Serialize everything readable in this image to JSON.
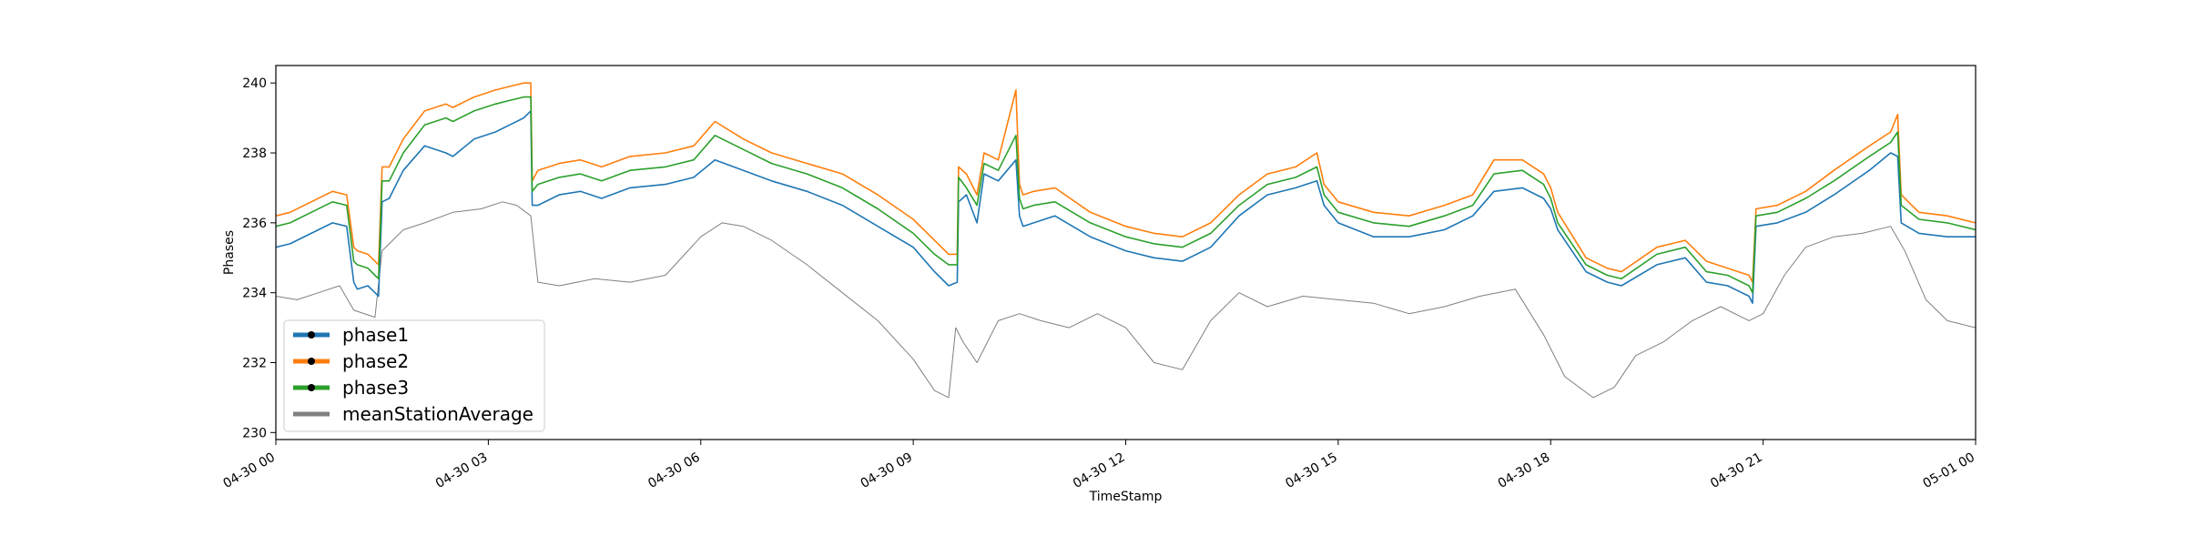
{
  "chart_data": {
    "type": "line",
    "title": "",
    "xlabel": "TimeStamp",
    "ylabel": "Phases",
    "x_range": [
      "04-30 00:00",
      "05-01 00:00"
    ],
    "ylim": [
      229.8,
      240.5
    ],
    "x_ticks": [
      {
        "hour": 0,
        "label": "04-30 00"
      },
      {
        "hour": 3,
        "label": "04-30 03"
      },
      {
        "hour": 6,
        "label": "04-30 06"
      },
      {
        "hour": 9,
        "label": "04-30 09"
      },
      {
        "hour": 12,
        "label": "04-30 12"
      },
      {
        "hour": 15,
        "label": "04-30 15"
      },
      {
        "hour": 18,
        "label": "04-30 18"
      },
      {
        "hour": 21,
        "label": "04-30 21"
      },
      {
        "hour": 24,
        "label": "05-01 00"
      }
    ],
    "y_ticks": [
      230,
      232,
      234,
      236,
      238,
      240
    ],
    "grid": false,
    "legend_position": "lower-left",
    "series": [
      {
        "name": "phase1",
        "color": "#1f77b4",
        "x": [
          0,
          0.2,
          0.5,
          0.8,
          1.0,
          1.1,
          1.15,
          1.3,
          1.4,
          1.45,
          1.5,
          1.6,
          1.8,
          2.1,
          2.4,
          2.5,
          2.8,
          3.1,
          3.3,
          3.5,
          3.6,
          3.62,
          3.7,
          4.0,
          4.3,
          4.6,
          5.0,
          5.5,
          5.9,
          6.2,
          6.6,
          7.0,
          7.5,
          8.0,
          8.5,
          9.0,
          9.3,
          9.5,
          9.62,
          9.64,
          9.75,
          9.9,
          10.0,
          10.2,
          10.45,
          10.5,
          10.55,
          10.7,
          11.0,
          11.5,
          12.0,
          12.4,
          12.8,
          13.2,
          13.6,
          14.0,
          14.4,
          14.7,
          14.8,
          15.0,
          15.5,
          16.0,
          16.5,
          16.9,
          17.2,
          17.6,
          17.9,
          18.0,
          18.1,
          18.5,
          18.8,
          19.0,
          19.5,
          19.9,
          20.2,
          20.5,
          20.8,
          20.85,
          20.9,
          21.2,
          21.6,
          22.0,
          22.5,
          22.8,
          22.9,
          22.95,
          23.2,
          23.6,
          24.0
        ],
        "y": [
          235.3,
          235.4,
          235.7,
          236.0,
          235.9,
          234.3,
          234.1,
          234.2,
          234.0,
          233.9,
          236.6,
          236.7,
          237.5,
          238.2,
          238.0,
          237.9,
          238.4,
          238.6,
          238.8,
          239.0,
          239.2,
          236.5,
          236.5,
          236.8,
          236.9,
          236.7,
          237.0,
          237.1,
          237.3,
          237.8,
          237.5,
          237.2,
          236.9,
          236.5,
          235.9,
          235.3,
          234.6,
          234.2,
          234.3,
          236.6,
          236.8,
          236.0,
          237.4,
          237.2,
          237.8,
          236.2,
          235.9,
          236.0,
          236.2,
          235.6,
          235.2,
          235.0,
          234.9,
          235.3,
          236.2,
          236.8,
          237.0,
          237.2,
          236.5,
          236.0,
          235.6,
          235.6,
          235.8,
          236.2,
          236.9,
          237.0,
          236.7,
          236.4,
          235.8,
          234.6,
          234.3,
          234.2,
          234.8,
          235.0,
          234.3,
          234.2,
          233.9,
          233.7,
          235.9,
          236.0,
          236.3,
          236.8,
          237.5,
          238.0,
          237.9,
          236.0,
          235.7,
          235.6,
          235.6
        ]
      },
      {
        "name": "phase2",
        "color": "#ff7f0e",
        "x": [
          0,
          0.2,
          0.5,
          0.8,
          1.0,
          1.1,
          1.15,
          1.3,
          1.4,
          1.45,
          1.5,
          1.6,
          1.8,
          2.1,
          2.4,
          2.5,
          2.8,
          3.1,
          3.3,
          3.5,
          3.6,
          3.62,
          3.7,
          4.0,
          4.3,
          4.6,
          5.0,
          5.5,
          5.9,
          6.2,
          6.6,
          7.0,
          7.5,
          8.0,
          8.5,
          9.0,
          9.3,
          9.5,
          9.62,
          9.64,
          9.75,
          9.9,
          10.0,
          10.2,
          10.45,
          10.5,
          10.55,
          10.7,
          11.0,
          11.5,
          12.0,
          12.4,
          12.8,
          13.2,
          13.6,
          14.0,
          14.4,
          14.7,
          14.8,
          15.0,
          15.5,
          16.0,
          16.5,
          16.9,
          17.2,
          17.6,
          17.9,
          18.0,
          18.1,
          18.5,
          18.8,
          19.0,
          19.5,
          19.9,
          20.2,
          20.5,
          20.8,
          20.85,
          20.9,
          21.2,
          21.6,
          22.0,
          22.5,
          22.8,
          22.9,
          22.95,
          23.2,
          23.6,
          24.0
        ],
        "y": [
          236.2,
          236.3,
          236.6,
          236.9,
          236.8,
          235.3,
          235.2,
          235.1,
          234.9,
          234.8,
          237.6,
          237.6,
          238.4,
          239.2,
          239.4,
          239.3,
          239.6,
          239.8,
          239.9,
          240.0,
          240.0,
          237.2,
          237.5,
          237.7,
          237.8,
          237.6,
          237.9,
          238.0,
          238.2,
          238.9,
          238.4,
          238.0,
          237.7,
          237.4,
          236.8,
          236.1,
          235.5,
          235.1,
          235.1,
          237.6,
          237.4,
          236.8,
          238.0,
          237.8,
          239.8,
          237.1,
          236.8,
          236.9,
          237.0,
          236.3,
          235.9,
          235.7,
          235.6,
          236.0,
          236.8,
          237.4,
          237.6,
          238.0,
          237.1,
          236.6,
          236.3,
          236.2,
          236.5,
          236.8,
          237.8,
          237.8,
          237.4,
          237.0,
          236.3,
          235.0,
          234.7,
          234.6,
          235.3,
          235.5,
          234.9,
          234.7,
          234.5,
          234.3,
          236.4,
          236.5,
          236.9,
          237.5,
          238.2,
          238.6,
          239.1,
          236.8,
          236.3,
          236.2,
          236.0
        ]
      },
      {
        "name": "phase3",
        "color": "#2ca02c",
        "x": [
          0,
          0.2,
          0.5,
          0.8,
          1.0,
          1.1,
          1.15,
          1.3,
          1.4,
          1.45,
          1.5,
          1.6,
          1.8,
          2.1,
          2.4,
          2.5,
          2.8,
          3.1,
          3.3,
          3.5,
          3.6,
          3.62,
          3.7,
          4.0,
          4.3,
          4.6,
          5.0,
          5.5,
          5.9,
          6.2,
          6.6,
          7.0,
          7.5,
          8.0,
          8.5,
          9.0,
          9.3,
          9.5,
          9.62,
          9.64,
          9.75,
          9.9,
          10.0,
          10.2,
          10.45,
          10.5,
          10.55,
          10.7,
          11.0,
          11.5,
          12.0,
          12.4,
          12.8,
          13.2,
          13.6,
          14.0,
          14.4,
          14.7,
          14.8,
          15.0,
          15.5,
          16.0,
          16.5,
          16.9,
          17.2,
          17.6,
          17.9,
          18.0,
          18.1,
          18.5,
          18.8,
          19.0,
          19.5,
          19.9,
          20.2,
          20.5,
          20.8,
          20.85,
          20.9,
          21.2,
          21.6,
          22.0,
          22.5,
          22.8,
          22.9,
          22.95,
          23.2,
          23.6,
          24.0
        ],
        "y": [
          235.9,
          236.0,
          236.3,
          236.6,
          236.5,
          234.9,
          234.8,
          234.7,
          234.5,
          234.4,
          237.2,
          237.2,
          238.0,
          238.8,
          239.0,
          238.9,
          239.2,
          239.4,
          239.5,
          239.6,
          239.6,
          236.9,
          237.1,
          237.3,
          237.4,
          237.2,
          237.5,
          237.6,
          237.8,
          238.5,
          238.1,
          237.7,
          237.4,
          237.0,
          236.4,
          235.7,
          235.1,
          234.8,
          234.8,
          237.3,
          237.0,
          236.5,
          237.7,
          237.5,
          238.5,
          236.7,
          236.4,
          236.5,
          236.6,
          236.0,
          235.6,
          235.4,
          235.3,
          235.7,
          236.5,
          237.1,
          237.3,
          237.6,
          236.8,
          236.3,
          236.0,
          235.9,
          236.2,
          236.5,
          237.4,
          237.5,
          237.1,
          236.7,
          236.0,
          234.8,
          234.5,
          234.4,
          235.1,
          235.3,
          234.6,
          234.5,
          234.2,
          234.0,
          236.2,
          236.3,
          236.7,
          237.2,
          237.9,
          238.3,
          238.6,
          236.5,
          236.1,
          236.0,
          235.8
        ]
      },
      {
        "name": "meanStationAverage",
        "color": "#808080",
        "x": [
          0,
          0.3,
          0.6,
          0.9,
          1.1,
          1.4,
          1.5,
          1.8,
          2.1,
          2.5,
          2.9,
          3.2,
          3.4,
          3.6,
          3.7,
          4.0,
          4.5,
          5.0,
          5.5,
          6.0,
          6.3,
          6.6,
          7.0,
          7.5,
          8.0,
          8.5,
          9.0,
          9.3,
          9.5,
          9.6,
          9.7,
          9.9,
          10.2,
          10.5,
          10.8,
          11.2,
          11.6,
          12.0,
          12.4,
          12.8,
          13.2,
          13.6,
          14.0,
          14.5,
          15.0,
          15.5,
          16.0,
          16.5,
          17.0,
          17.5,
          17.9,
          18.2,
          18.6,
          18.9,
          19.2,
          19.6,
          20.0,
          20.4,
          20.8,
          21.0,
          21.3,
          21.6,
          22.0,
          22.4,
          22.8,
          23.0,
          23.3,
          23.6,
          24.0
        ],
        "y": [
          233.9,
          233.8,
          234.0,
          234.2,
          233.5,
          233.3,
          235.2,
          235.8,
          236.0,
          236.3,
          236.4,
          236.6,
          236.5,
          236.2,
          234.3,
          234.2,
          234.4,
          234.3,
          234.5,
          235.6,
          236.0,
          235.9,
          235.5,
          234.8,
          234.0,
          233.2,
          232.1,
          231.2,
          231.0,
          233.0,
          232.6,
          232.0,
          233.2,
          233.4,
          233.2,
          233.0,
          233.4,
          233.0,
          232.0,
          231.8,
          233.2,
          234.0,
          233.6,
          233.9,
          233.8,
          233.7,
          233.4,
          233.6,
          233.9,
          234.1,
          232.8,
          231.6,
          231.0,
          231.3,
          232.2,
          232.6,
          233.2,
          233.6,
          233.2,
          233.4,
          234.5,
          235.3,
          235.6,
          235.7,
          235.9,
          235.2,
          233.8,
          233.2,
          233.0
        ]
      }
    ]
  }
}
